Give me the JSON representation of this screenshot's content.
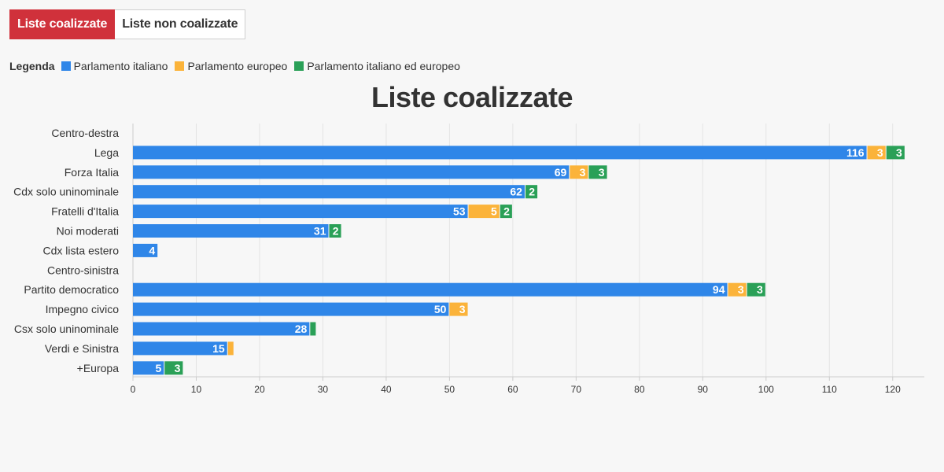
{
  "tabs": [
    {
      "label": "Liste coalizzate",
      "active": true
    },
    {
      "label": "Liste non coalizzate",
      "active": false
    }
  ],
  "legend": {
    "title": "Legenda",
    "items": [
      {
        "label": "Parlamento italiano",
        "color": "#2f86e8"
      },
      {
        "label": "Parlamento europeo",
        "color": "#fbb33a"
      },
      {
        "label": "Parlamento italiano ed europeo",
        "color": "#2aa057"
      }
    ]
  },
  "chart_data": {
    "type": "bar",
    "orientation": "horizontal",
    "stacked": true,
    "title": "Liste coalizzate",
    "categories": [
      "Centro-destra",
      "Lega",
      "Forza Italia",
      "Cdx solo uninominale",
      "Fratelli d'Italia",
      "Noi moderati",
      "Cdx lista estero",
      "Centro-sinistra",
      "Partito democratico",
      "Impegno civico",
      "Csx solo uninominale",
      "Verdi e Sinistra",
      "+Europa"
    ],
    "series": [
      {
        "name": "Parlamento italiano",
        "color": "#2f86e8",
        "values": [
          0,
          116,
          69,
          62,
          53,
          31,
          4,
          0,
          94,
          50,
          28,
          15,
          5
        ]
      },
      {
        "name": "Parlamento europeo",
        "color": "#fbb33a",
        "values": [
          0,
          3,
          3,
          0,
          5,
          0,
          0,
          0,
          3,
          3,
          0,
          1,
          0
        ]
      },
      {
        "name": "Parlamento italiano ed europeo",
        "color": "#2aa057",
        "values": [
          0,
          3,
          3,
          2,
          2,
          2,
          0,
          0,
          3,
          0,
          1,
          0,
          3
        ]
      }
    ],
    "xlim": [
      0,
      125
    ],
    "xticks": [
      0,
      10,
      20,
      30,
      40,
      50,
      60,
      70,
      80,
      90,
      100,
      110,
      120
    ],
    "grid": true,
    "legend_position": "top-left"
  }
}
